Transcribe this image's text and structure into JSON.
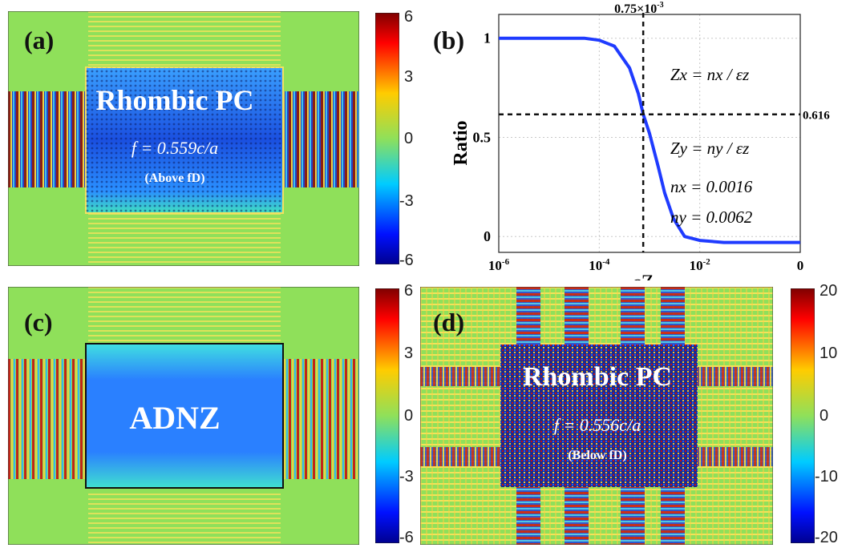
{
  "panels": {
    "a": {
      "label": "(a)",
      "title": "Rhombic PC",
      "freq": "f = 0.559c/a",
      "note": "(Above fD)",
      "colorbar": {
        "ticks": [
          "6",
          "3",
          "0",
          "-3",
          "-6"
        ]
      }
    },
    "b": {
      "label": "(b)"
    },
    "c": {
      "label": "(c)",
      "title": "ADNZ",
      "colorbar": {
        "ticks": [
          "6",
          "3",
          "0",
          "-3",
          "-6"
        ]
      }
    },
    "d": {
      "label": "(d)",
      "title": "Rhombic PC",
      "freq": "f = 0.556c/a",
      "note": "(Below fD)",
      "colorbar": {
        "ticks": [
          "20",
          "10",
          "0",
          "-10",
          "-20"
        ]
      }
    }
  },
  "chart_data": {
    "type": "line",
    "ylabel": "Ratio",
    "xlabel": "εZ",
    "x_scale": "log",
    "x_ticks": [
      "10^-6",
      "10^-4",
      "10^-2",
      "0"
    ],
    "y_ticks": [
      "0",
      "0.5",
      "1"
    ],
    "xlim": [
      1e-06,
      1
    ],
    "ylim": [
      -0.08,
      1.12
    ],
    "grid": true,
    "series": [
      {
        "color": "#1f3bff",
        "x": [
          1e-06,
          1e-05,
          5e-05,
          0.0001,
          0.0002,
          0.0004,
          0.0006,
          0.00075,
          0.001,
          0.0015,
          0.002,
          0.003,
          0.005,
          0.01,
          0.03,
          0.1,
          1
        ],
        "y": [
          1.0,
          1.0,
          1.0,
          0.99,
          0.96,
          0.85,
          0.72,
          0.616,
          0.52,
          0.35,
          0.22,
          0.09,
          0.0,
          -0.02,
          -0.03,
          -0.03,
          -0.03
        ]
      }
    ],
    "annotations": {
      "vline": {
        "x": 0.00075,
        "label": "0.75×10-3"
      },
      "hline": {
        "y": 0.616,
        "label": "0.616"
      },
      "eq_zx": "Zx = nx / εz",
      "eq_zy": "Zy = ny / εz",
      "nx": "nx = 0.0016",
      "ny": "ny = 0.0062"
    }
  }
}
